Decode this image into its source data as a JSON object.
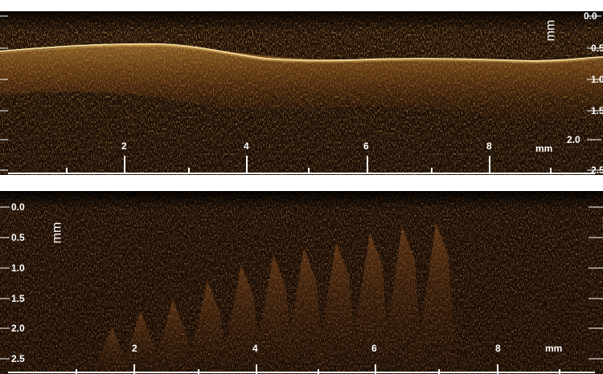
{
  "panels": [
    {
      "id": "top",
      "depth_unit": "mm",
      "depth_ticks": [
        "0.0",
        "0.5",
        "1.0",
        "1.5",
        "2.0",
        "2.5"
      ],
      "lateral_unit": "mm",
      "lateral_ticks": [
        "2",
        "4",
        "6",
        "8"
      ]
    },
    {
      "id": "bottom",
      "depth_unit": "mm",
      "depth_ticks": [
        "0.0",
        "0.5",
        "1.0",
        "1.5",
        "2.0",
        "2.5"
      ],
      "lateral_unit": "mm",
      "lateral_ticks": [
        "2",
        "4",
        "6",
        "8"
      ]
    }
  ],
  "colors": {
    "background": "#ffffff",
    "image_base": "#1a0c04",
    "speckle": "#7a3a10",
    "bright_surface": "#fff2c0",
    "text": "#ffffff"
  }
}
